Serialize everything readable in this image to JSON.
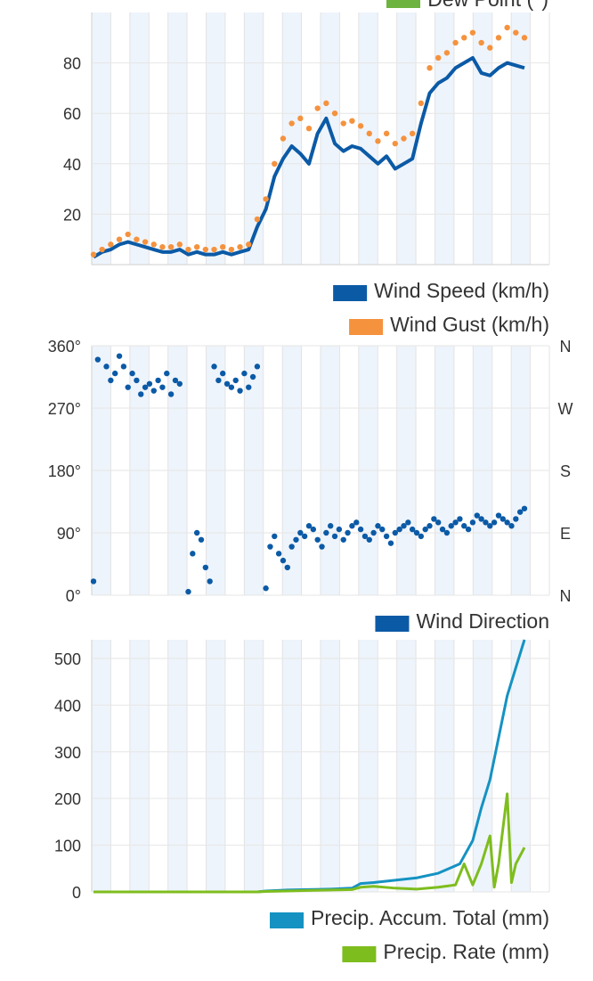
{
  "top_partial_legend": {
    "label": "Dew Point (°)",
    "color": "#6cb33f"
  },
  "chart_data": [
    {
      "type": "line",
      "yticks": [
        20,
        40,
        60,
        80
      ],
      "ylim": [
        0,
        100
      ],
      "xlim": [
        0,
        100
      ],
      "grid": true,
      "series": [
        {
          "name": "Wind Speed (km/h)",
          "color": "#0b5aa6",
          "style": "line",
          "x": [
            0,
            2,
            4,
            6,
            8,
            10,
            12,
            14,
            16,
            18,
            20,
            22,
            24,
            26,
            28,
            30,
            32,
            34,
            36,
            38,
            40,
            42,
            44,
            46,
            48,
            50,
            52,
            54,
            56,
            58,
            60,
            62,
            64,
            66,
            68,
            70,
            72,
            74,
            76,
            78,
            80,
            82,
            84,
            86,
            88,
            90,
            92,
            94,
            96,
            98,
            100
          ],
          "values": [
            3,
            5,
            6,
            8,
            9,
            8,
            7,
            6,
            5,
            5,
            6,
            4,
            5,
            4,
            4,
            5,
            4,
            5,
            6,
            15,
            22,
            35,
            42,
            47,
            44,
            40,
            52,
            58,
            48,
            45,
            47,
            46,
            43,
            40,
            43,
            38,
            40,
            42,
            56,
            68,
            72,
            74,
            78,
            80,
            82,
            76,
            75,
            78,
            80,
            79,
            78
          ]
        },
        {
          "name": "Wind Gust (km/h)",
          "color": "#f5923e",
          "style": "dots",
          "x": [
            0,
            2,
            4,
            6,
            8,
            10,
            12,
            14,
            16,
            18,
            20,
            22,
            24,
            26,
            28,
            30,
            32,
            34,
            36,
            38,
            40,
            42,
            44,
            46,
            48,
            50,
            52,
            54,
            56,
            58,
            60,
            62,
            64,
            66,
            68,
            70,
            72,
            74,
            76,
            78,
            80,
            82,
            84,
            86,
            88,
            90,
            92,
            94,
            96,
            98,
            100
          ],
          "values": [
            4,
            6,
            8,
            10,
            12,
            10,
            9,
            8,
            7,
            7,
            8,
            6,
            7,
            6,
            6,
            7,
            6,
            7,
            8,
            18,
            26,
            40,
            50,
            56,
            58,
            54,
            62,
            64,
            60,
            56,
            57,
            55,
            52,
            49,
            52,
            48,
            50,
            52,
            64,
            78,
            82,
            84,
            88,
            90,
            92,
            88,
            86,
            90,
            94,
            92,
            90
          ]
        }
      ]
    },
    {
      "type": "scatter",
      "yticks": [
        0,
        90,
        180,
        270,
        360
      ],
      "ytick_labels": [
        "0°",
        "90°",
        "180°",
        "270°",
        "360°"
      ],
      "right_labels": [
        "N",
        "E",
        "S",
        "W",
        "N"
      ],
      "ylim": [
        0,
        360
      ],
      "xlim": [
        0,
        100
      ],
      "grid": true,
      "series": [
        {
          "name": "Wind Direction",
          "color": "#0b5aa6",
          "x": [
            0,
            1,
            3,
            4,
            5,
            6,
            7,
            8,
            9,
            10,
            11,
            12,
            13,
            14,
            15,
            16,
            17,
            18,
            19,
            20,
            22,
            23,
            24,
            25,
            26,
            27,
            28,
            29,
            30,
            31,
            32,
            33,
            34,
            35,
            36,
            37,
            38,
            40,
            41,
            42,
            43,
            44,
            45,
            46,
            47,
            48,
            49,
            50,
            51,
            52,
            53,
            54,
            55,
            56,
            57,
            58,
            59,
            60,
            61,
            62,
            63,
            64,
            65,
            66,
            67,
            68,
            69,
            70,
            71,
            72,
            73,
            74,
            75,
            76,
            77,
            78,
            79,
            80,
            81,
            82,
            83,
            84,
            85,
            86,
            87,
            88,
            89,
            90,
            91,
            92,
            93,
            94,
            95,
            96,
            97,
            98,
            99,
            100
          ],
          "values": [
            20,
            340,
            330,
            310,
            320,
            345,
            330,
            300,
            320,
            310,
            290,
            300,
            305,
            295,
            310,
            300,
            320,
            290,
            310,
            305,
            5,
            60,
            90,
            80,
            40,
            20,
            330,
            310,
            320,
            305,
            300,
            310,
            295,
            320,
            300,
            315,
            330,
            10,
            70,
            85,
            60,
            50,
            40,
            70,
            80,
            90,
            85,
            100,
            95,
            80,
            70,
            90,
            100,
            85,
            95,
            80,
            90,
            100,
            105,
            95,
            85,
            80,
            90,
            100,
            95,
            85,
            75,
            90,
            95,
            100,
            105,
            95,
            90,
            85,
            95,
            100,
            110,
            105,
            95,
            90,
            100,
            105,
            110,
            100,
            95,
            105,
            115,
            110,
            105,
            100,
            105,
            115,
            110,
            105,
            100,
            110,
            120,
            125
          ]
        }
      ]
    },
    {
      "type": "line",
      "yticks": [
        0,
        100,
        200,
        300,
        400,
        500
      ],
      "ylim": [
        0,
        540
      ],
      "xlim": [
        0,
        100
      ],
      "grid": true,
      "series": [
        {
          "name": "Precip. Accum. Total (mm)",
          "color": "#1592c2",
          "x": [
            0,
            10,
            20,
            30,
            38,
            40,
            45,
            50,
            55,
            60,
            62,
            65,
            70,
            75,
            80,
            85,
            88,
            90,
            92,
            94,
            96,
            98,
            100
          ],
          "values": [
            0,
            0,
            0,
            0,
            0,
            2,
            4,
            5,
            6,
            8,
            18,
            20,
            25,
            30,
            40,
            60,
            110,
            180,
            240,
            330,
            420,
            480,
            540
          ]
        },
        {
          "name": "Precip. Rate (mm)",
          "color": "#7ebd1e",
          "x": [
            0,
            10,
            20,
            30,
            38,
            40,
            45,
            50,
            55,
            60,
            62,
            65,
            70,
            75,
            80,
            84,
            86,
            88,
            90,
            92,
            93,
            94,
            96,
            97,
            98,
            100
          ],
          "values": [
            0,
            0,
            0,
            0,
            0,
            1,
            2,
            3,
            4,
            5,
            10,
            12,
            8,
            6,
            10,
            15,
            60,
            15,
            60,
            120,
            10,
            60,
            210,
            20,
            60,
            95
          ]
        }
      ]
    }
  ]
}
